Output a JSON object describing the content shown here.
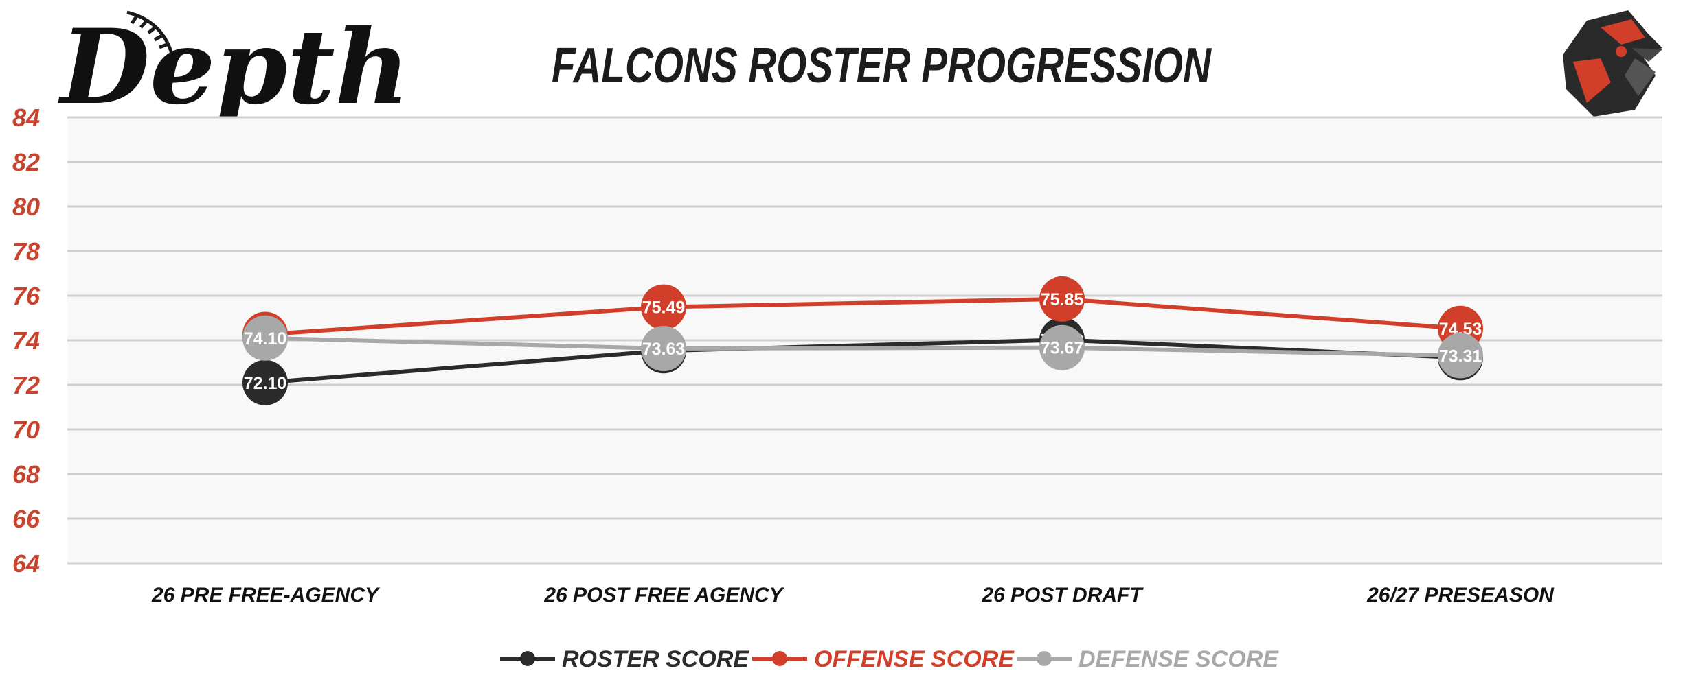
{
  "logo_text": "Depth",
  "colors": {
    "roster": "#2b2b2b",
    "offense": "#d13f2a",
    "defense": "#a8a8a8",
    "ytick": "#c9442e",
    "title": "#1c1c1c",
    "grid": "#cfcfcf",
    "plot_bg": "#f8f8f8"
  },
  "chart_data": {
    "type": "line",
    "title": "FALCONS ROSTER PROGRESSION",
    "categories": [
      "26 PRE FREE-AGENCY",
      "26 POST FREE AGENCY",
      "26 POST DRAFT",
      "26/27 PRESEASON"
    ],
    "ylim": [
      64,
      84
    ],
    "yticks": [
      84,
      82,
      80,
      78,
      76,
      74,
      72,
      70,
      68,
      66,
      64
    ],
    "grid": true,
    "legend_position": "bottom",
    "series": [
      {
        "name": "ROSTER SCORE",
        "values": [
          72.1,
          73.53,
          74.02,
          73.22
        ],
        "labels": [
          "72.10",
          "73.53",
          "74.02",
          "73.22"
        ]
      },
      {
        "name": "OFFENSE SCORE",
        "values": [
          74.26,
          75.49,
          75.85,
          74.53
        ],
        "labels": [
          "74.26",
          "75.49",
          "75.85",
          "74.53"
        ]
      },
      {
        "name": "DEFENSE SCORE",
        "values": [
          74.1,
          73.63,
          73.67,
          73.31
        ],
        "labels": [
          "74.10",
          "73.63",
          "73.67",
          "73.31"
        ]
      }
    ]
  }
}
